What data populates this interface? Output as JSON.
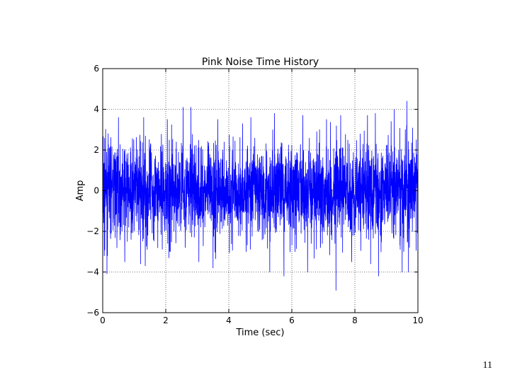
{
  "page_number": "11",
  "chart_data": {
    "type": "line",
    "title": "Pink Noise Time History",
    "xlabel": "Time (sec)",
    "ylabel": "Amp",
    "xlim": [
      0,
      10
    ],
    "ylim": [
      -6,
      6
    ],
    "xticks": [
      0,
      2,
      4,
      6,
      8,
      10
    ],
    "yticks": [
      -6,
      -4,
      -2,
      0,
      2,
      4,
      6
    ],
    "xtick_labels": [
      "0",
      "2",
      "4",
      "6",
      "8",
      "10"
    ],
    "ytick_labels": [
      "−6",
      "−4",
      "−2",
      "0",
      "2",
      "4",
      "6"
    ],
    "grid": true,
    "grid_style": "dotted",
    "series": [
      {
        "color": "#0000ff",
        "x_start": 0,
        "x_end": 10,
        "typical_range": [
          -2.5,
          2.5
        ],
        "max": 4.4,
        "min": -4.9,
        "peaks": [
          {
            "x": 0.0,
            "y": 3.4
          },
          {
            "x": 0.05,
            "y": -3.2
          },
          {
            "x": 0.15,
            "y": -3.2
          },
          {
            "x": 0.5,
            "y": 3.6
          },
          {
            "x": 0.7,
            "y": -3.5
          },
          {
            "x": 0.9,
            "y": -2.4
          },
          {
            "x": 1.3,
            "y": 3.6
          },
          {
            "x": 1.2,
            "y": -3.6
          },
          {
            "x": 1.35,
            "y": -3.7
          },
          {
            "x": 2.15,
            "y": -3.0
          },
          {
            "x": 2.05,
            "y": 3.5
          },
          {
            "x": 2.1,
            "y": -3.1
          },
          {
            "x": 2.55,
            "y": 4.1
          },
          {
            "x": 2.8,
            "y": 4.1
          },
          {
            "x": 2.1,
            "y": -3.3
          },
          {
            "x": 3.05,
            "y": -3.5
          },
          {
            "x": 3.5,
            "y": -3.8
          },
          {
            "x": 3.65,
            "y": 3.5
          },
          {
            "x": 4.55,
            "y": -3.0
          },
          {
            "x": 4.7,
            "y": 3.6
          },
          {
            "x": 5.3,
            "y": -4.0
          },
          {
            "x": 5.45,
            "y": 3.8
          },
          {
            "x": 5.75,
            "y": -4.2
          },
          {
            "x": 6.1,
            "y": -3.0
          },
          {
            "x": 6.35,
            "y": 3.7
          },
          {
            "x": 6.5,
            "y": -4.0
          },
          {
            "x": 7.1,
            "y": 3.5
          },
          {
            "x": 7.4,
            "y": -4.9
          },
          {
            "x": 7.55,
            "y": 3.7
          },
          {
            "x": 7.9,
            "y": -3.5
          },
          {
            "x": 8.4,
            "y": 3.7
          },
          {
            "x": 8.5,
            "y": -3.6
          },
          {
            "x": 8.65,
            "y": 3.8
          },
          {
            "x": 8.75,
            "y": -4.2
          },
          {
            "x": 9.15,
            "y": 3.4
          },
          {
            "x": 9.25,
            "y": 4.0
          },
          {
            "x": 9.5,
            "y": -4.0
          },
          {
            "x": 9.55,
            "y": -3.0
          },
          {
            "x": 9.65,
            "y": 4.4
          },
          {
            "x": 9.7,
            "y": -4.0
          },
          {
            "x": 9.95,
            "y": 2.5
          },
          {
            "x": 10.0,
            "y": -2.6
          }
        ]
      }
    ]
  }
}
